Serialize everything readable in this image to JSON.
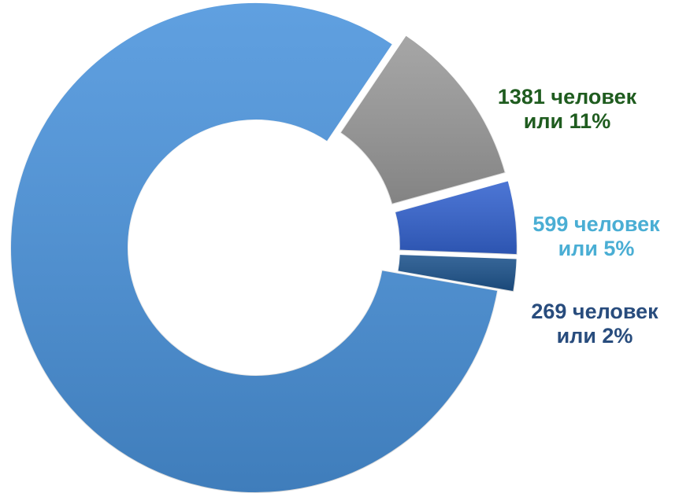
{
  "chart_data": {
    "type": "donut",
    "values": [
      10000,
      1381,
      599,
      269
    ],
    "value_labels": [
      null,
      [
        "1381 человек",
        "или 11%"
      ],
      [
        "599 человек",
        "или 5%"
      ],
      [
        "269 человек",
        "или 2%"
      ]
    ],
    "colors": [
      "#4a93dc",
      "#9a9a9a",
      "#3463cf",
      "#1d538c"
    ],
    "label_colors": [
      null,
      "#1f5c1f",
      "#4aaed4",
      "#284c7d"
    ]
  }
}
